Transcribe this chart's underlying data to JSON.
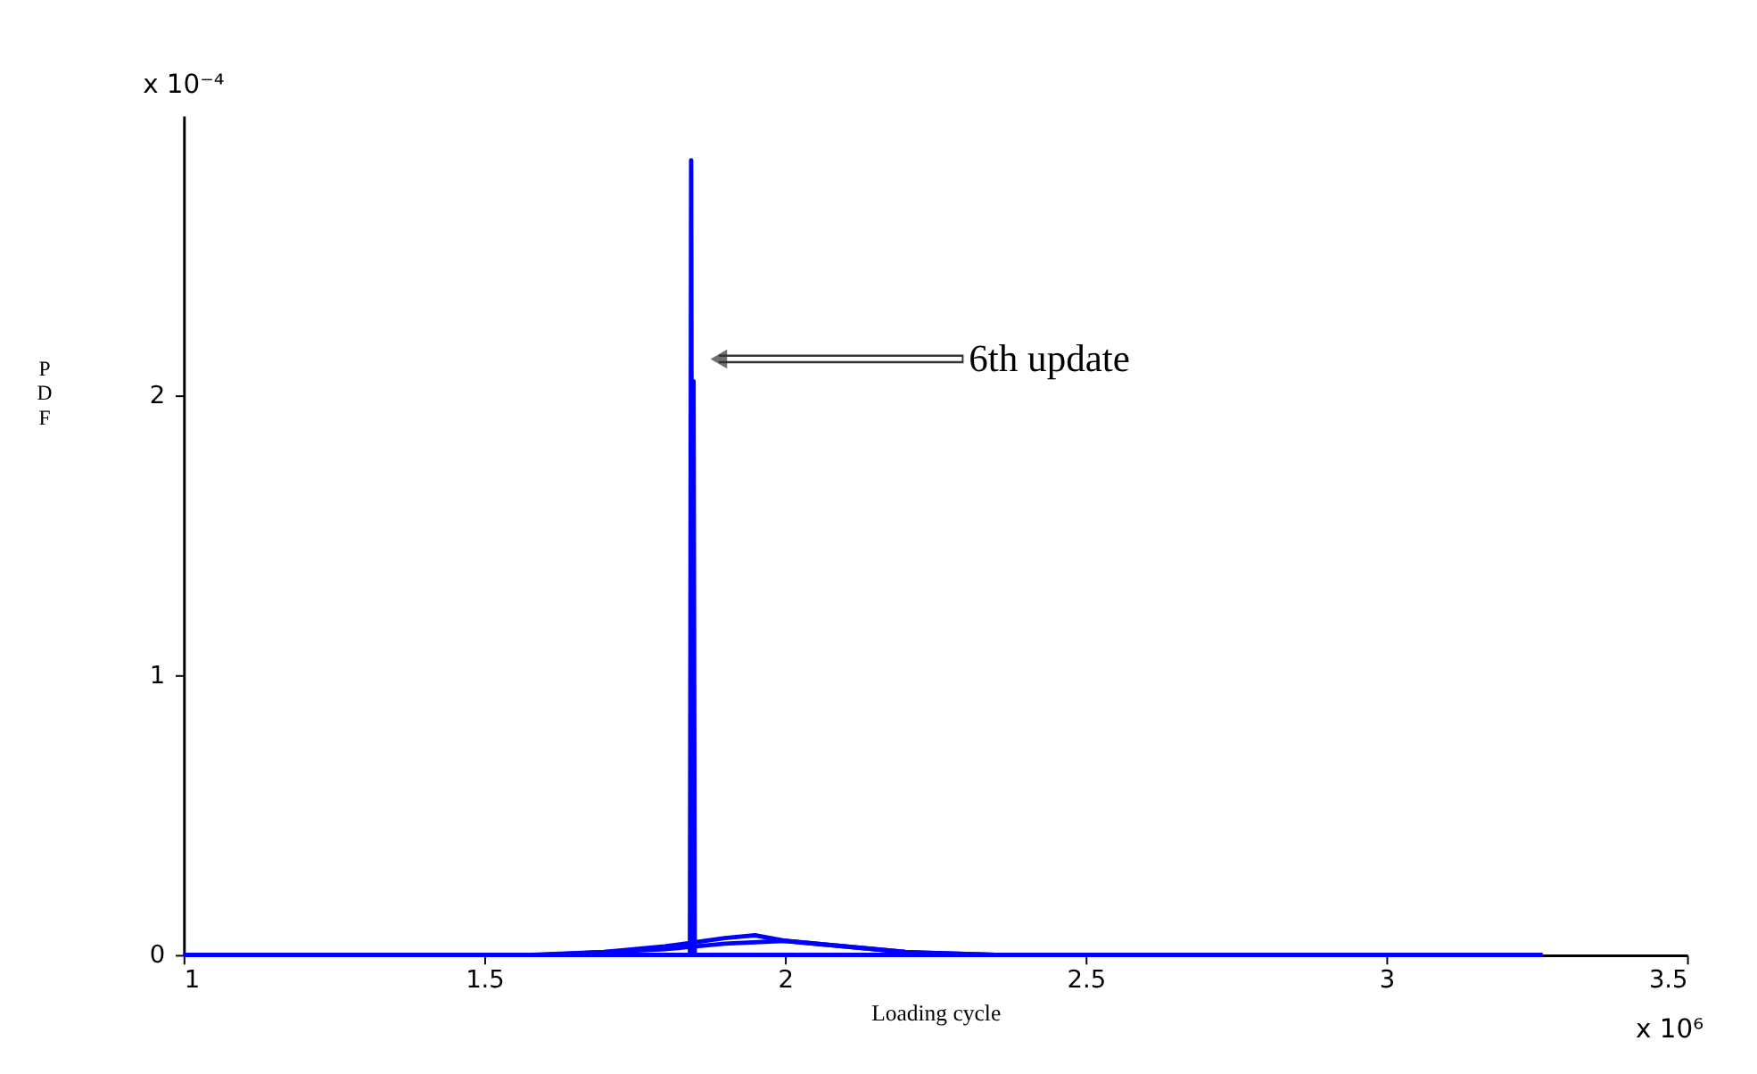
{
  "chart_data": {
    "type": "line",
    "xlabel": "Loading cycle",
    "ylabel": "PDF",
    "xlim": [
      1,
      3.5
    ],
    "xticks": [
      1,
      1.5,
      2,
      2.5,
      3,
      3.5
    ],
    "ylim": [
      0,
      3
    ],
    "yticks": [
      0,
      1,
      2
    ],
    "grid": false,
    "line_style": "solid",
    "series": [
      {
        "color": "#0000ff",
        "x": [
          1,
          1.842,
          1.844,
          1.846,
          3.26
        ],
        "values": [
          0,
          0,
          2.84,
          0,
          0
        ]
      },
      {
        "color": "#0000ff",
        "x": [
          1,
          1.846,
          1.848,
          1.85,
          3.2
        ],
        "values": [
          0,
          0,
          2.05,
          0,
          0
        ]
      },
      {
        "color": "#0000ff",
        "x": [
          1.58,
          1.7,
          1.8,
          1.9,
          1.95,
          2.0,
          2.1,
          2.2,
          2.35
        ],
        "values": [
          0,
          0.01,
          0.03,
          0.06,
          0.07,
          0.05,
          0.03,
          0.01,
          0
        ]
      },
      {
        "color": "#0000ff",
        "x": [
          1.6,
          1.8,
          1.9,
          2.0,
          2.1,
          2.2,
          2.35
        ],
        "values": [
          0,
          0.02,
          0.04,
          0.05,
          0.03,
          0.01,
          0
        ]
      }
    ],
    "annotations": [
      {
        "text": "6th update",
        "x": 1.89,
        "y": 2.13
      },
      "x 10⁻⁴",
      "x 10⁶"
    ]
  }
}
